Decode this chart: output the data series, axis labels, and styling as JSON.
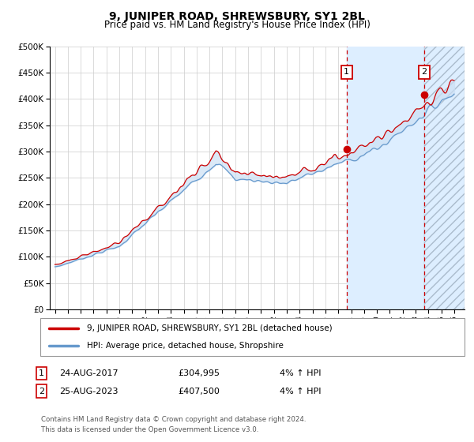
{
  "title": "9, JUNIPER ROAD, SHREWSBURY, SY1 2BL",
  "subtitle": "Price paid vs. HM Land Registry's House Price Index (HPI)",
  "hpi_color": "#6699cc",
  "price_color": "#cc0000",
  "fill_color": "#ddeeff",
  "bg_color": "#ffffff",
  "shade_color": "#ddeeff",
  "grid_color": "#cccccc",
  "sale1_year": 2017.65,
  "sale1_price": 304995,
  "sale2_year": 2023.65,
  "sale2_price": 407500,
  "sale1_date": "24-AUG-2017",
  "sale2_date": "25-AUG-2023",
  "sale1_hpi_pct": "4% ↑ HPI",
  "sale2_hpi_pct": "4% ↑ HPI",
  "legend_line1": "9, JUNIPER ROAD, SHREWSBURY, SY1 2BL (detached house)",
  "legend_line2": "HPI: Average price, detached house, Shropshire",
  "footnote": "Contains HM Land Registry data © Crown copyright and database right 2024.\nThis data is licensed under the Open Government Licence v3.0.",
  "hatch_color": "#aabbcc",
  "annotation_box_color": "#cc0000",
  "dashed_line_color": "#cc0000"
}
